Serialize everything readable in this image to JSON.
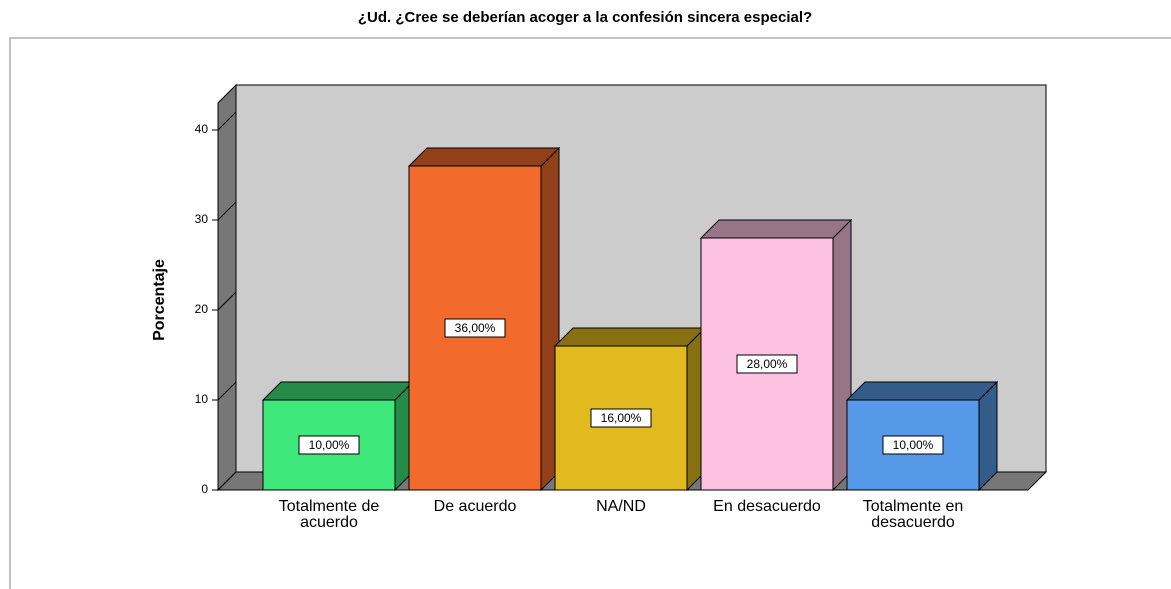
{
  "chart_data": {
    "type": "bar3d",
    "title": "¿Ud. ¿Cree se deberían acoger a la confesión sincera especial?",
    "y_label": "Porcentaje",
    "categories": [
      "Totalmente de acuerdo",
      "De acuerdo",
      "NA/ND",
      "En desacuerdo",
      "Totalmente en desacuerdo"
    ],
    "values": [
      10,
      36,
      16,
      28,
      10
    ],
    "value_labels": [
      "10,00%",
      "36,00%",
      "16,00%",
      "28,00%",
      "10,00%"
    ],
    "colors": [
      "#3ee87a",
      "#f26a2c",
      "#e0ba1e",
      "#fdc1e1",
      "#5599e8"
    ],
    "ylim": [
      0,
      43
    ],
    "yticks": [
      0,
      10,
      20,
      30,
      40
    ]
  }
}
